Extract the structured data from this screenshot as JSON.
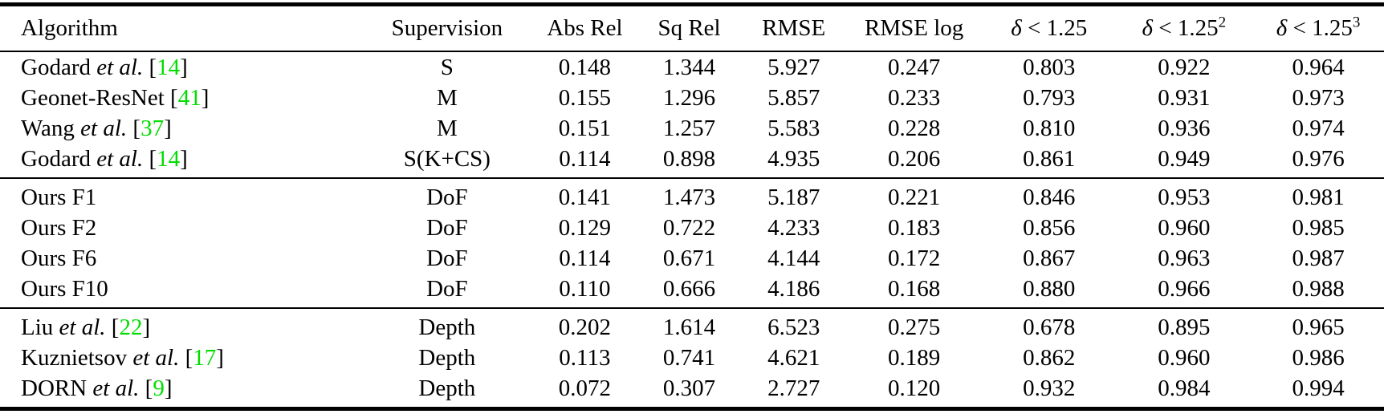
{
  "table": {
    "columns": [
      {
        "label": "Algorithm"
      },
      {
        "label": "Supervision"
      },
      {
        "label": "Abs Rel"
      },
      {
        "label": "Sq Rel"
      },
      {
        "label": "RMSE"
      },
      {
        "label": "RMSE log"
      },
      {
        "symbol": "δ",
        "relation": " < 1.25",
        "sup": ""
      },
      {
        "symbol": "δ",
        "relation": " < 1.25",
        "sup": "2"
      },
      {
        "symbol": "δ",
        "relation": " < 1.25",
        "sup": "3"
      }
    ],
    "cite_brackets": {
      "open": "[",
      "close": "]"
    },
    "groups": [
      {
        "rows": [
          {
            "name": "Godard",
            "etal": "et al.",
            "cite": "14",
            "supervision": "S",
            "values": [
              "0.148",
              "1.344",
              "5.927",
              "0.247",
              "0.803",
              "0.922",
              "0.964"
            ]
          },
          {
            "name": "Geonet-ResNet",
            "etal": "",
            "cite": "41",
            "supervision": "M",
            "values": [
              "0.155",
              "1.296",
              "5.857",
              "0.233",
              "0.793",
              "0.931",
              "0.973"
            ]
          },
          {
            "name": "Wang",
            "etal": "et al.",
            "cite": "37",
            "supervision": "M",
            "values": [
              "0.151",
              "1.257",
              "5.583",
              "0.228",
              "0.810",
              "0.936",
              "0.974"
            ]
          },
          {
            "name": "Godard",
            "etal": "et al.",
            "cite": "14",
            "supervision": "S(K+CS)",
            "values": [
              "0.114",
              "0.898",
              "4.935",
              "0.206",
              "0.861",
              "0.949",
              "0.976"
            ]
          }
        ]
      },
      {
        "rows": [
          {
            "name": "Ours F1",
            "etal": "",
            "cite": "",
            "supervision": "DoF",
            "values": [
              "0.141",
              "1.473",
              "5.187",
              "0.221",
              "0.846",
              "0.953",
              "0.981"
            ]
          },
          {
            "name": "Ours F2",
            "etal": "",
            "cite": "",
            "supervision": "DoF",
            "values": [
              "0.129",
              "0.722",
              "4.233",
              "0.183",
              "0.856",
              "0.960",
              "0.985"
            ]
          },
          {
            "name": "Ours F6",
            "etal": "",
            "cite": "",
            "supervision": "DoF",
            "values": [
              "0.114",
              "0.671",
              "4.144",
              "0.172",
              "0.867",
              "0.963",
              "0.987"
            ]
          },
          {
            "name": "Ours F10",
            "etal": "",
            "cite": "",
            "supervision": "DoF",
            "values": [
              "0.110",
              "0.666",
              "4.186",
              "0.168",
              "0.880",
              "0.966",
              "0.988"
            ]
          }
        ]
      },
      {
        "rows": [
          {
            "name": "Liu",
            "etal": "et al.",
            "cite": "22",
            "supervision": "Depth",
            "values": [
              "0.202",
              "1.614",
              "6.523",
              "0.275",
              "0.678",
              "0.895",
              "0.965"
            ]
          },
          {
            "name": "Kuznietsov",
            "etal": "et al.",
            "cite": "17",
            "supervision": "Depth",
            "values": [
              "0.113",
              "0.741",
              "4.621",
              "0.189",
              "0.862",
              "0.960",
              "0.986"
            ]
          },
          {
            "name": "DORN",
            "etal": "et al.",
            "cite": "9",
            "supervision": "Depth",
            "values": [
              "0.072",
              "0.307",
              "2.727",
              "0.120",
              "0.932",
              "0.984",
              "0.994"
            ]
          }
        ]
      }
    ]
  },
  "colors": {
    "citation": "#00dd00",
    "text": "#000000",
    "rule": "#000000",
    "background": "#ffffff"
  }
}
